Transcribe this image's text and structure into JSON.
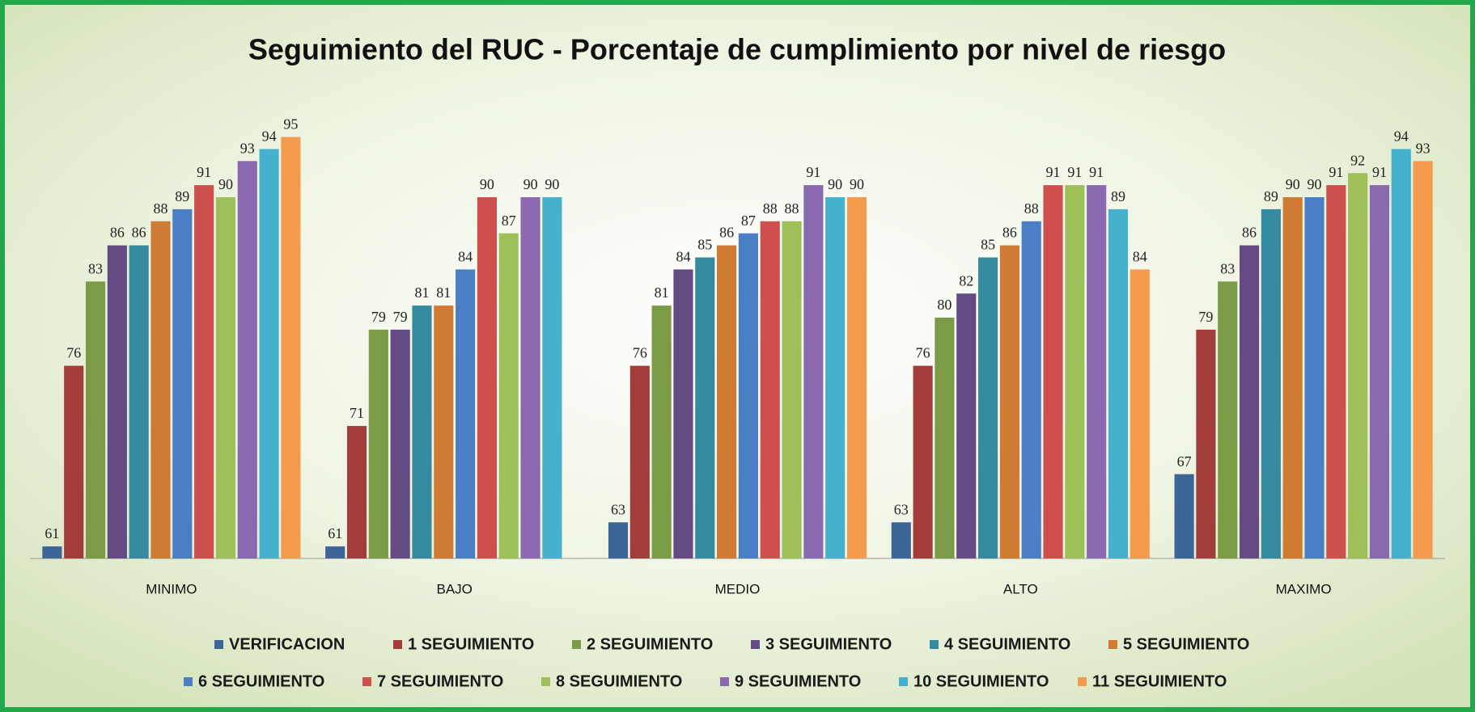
{
  "chart_data": {
    "type": "bar",
    "title": "Seguimiento del RUC - Porcentaje de cumplimiento por nivel de riesgo",
    "categories": [
      "MINIMO",
      "BAJO",
      "MEDIO",
      "ALTO",
      "MAXIMO"
    ],
    "ylim": [
      60,
      100
    ],
    "series": [
      {
        "name": "VERIFICACION",
        "color": "#3d6597",
        "values": [
          61,
          61,
          63,
          63,
          67
        ]
      },
      {
        "name": "1 SEGUIMIENTO",
        "color": "#a23d3b",
        "values": [
          76,
          71,
          76,
          76,
          79
        ]
      },
      {
        "name": "2 SEGUIMIENTO",
        "color": "#7b9b47",
        "values": [
          83,
          79,
          81,
          80,
          83
        ]
      },
      {
        "name": "3 SEGUIMIENTO",
        "color": "#644b83",
        "values": [
          86,
          79,
          84,
          82,
          86
        ]
      },
      {
        "name": "4 SEGUIMIENTO",
        "color": "#368a9f",
        "values": [
          86,
          81,
          85,
          85,
          89
        ]
      },
      {
        "name": "5 SEGUIMIENTO",
        "color": "#cf7b33",
        "values": [
          88,
          81,
          86,
          86,
          90
        ]
      },
      {
        "name": "6 SEGUIMIENTO",
        "color": "#4b7fc5",
        "values": [
          89,
          84,
          87,
          88,
          90
        ]
      },
      {
        "name": "7 SEGUIMIENTO",
        "color": "#cf4f4d",
        "values": [
          91,
          90,
          88,
          91,
          91
        ]
      },
      {
        "name": "8 SEGUIMIENTO",
        "color": "#9fc059",
        "values": [
          90,
          87,
          88,
          91,
          92
        ]
      },
      {
        "name": "9 SEGUIMIENTO",
        "color": "#8a69b1",
        "values": [
          93,
          90,
          91,
          91,
          91
        ]
      },
      {
        "name": "10 SEGUIMIENTO",
        "color": "#46b1cd",
        "values": [
          94,
          90,
          90,
          89,
          94
        ]
      },
      {
        "name": "11 SEGUIMIENTO",
        "color": "#f49b4d",
        "values": [
          95,
          null,
          90,
          84,
          93
        ]
      }
    ]
  }
}
